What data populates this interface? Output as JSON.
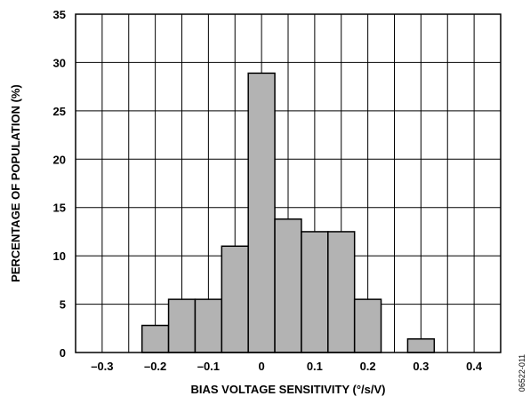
{
  "figure_id": "06522-011",
  "chart_data": {
    "type": "bar",
    "title": "",
    "xlabel": "BIAS VOLTAGE SENSITIVITY (°/s/V)",
    "ylabel": "PERCENTAGE OF POPULATION (%)",
    "xlim": [
      -0.35,
      0.45
    ],
    "ylim": [
      0,
      35
    ],
    "grid": true,
    "bar_color": "#b3b3b3",
    "x_ticks": [
      {
        "value": -0.3,
        "label": "–0.3"
      },
      {
        "value": -0.2,
        "label": "–0.2"
      },
      {
        "value": -0.1,
        "label": "–0.1"
      },
      {
        "value": 0,
        "label": "0"
      },
      {
        "value": 0.1,
        "label": "0.1"
      },
      {
        "value": 0.2,
        "label": "0.2"
      },
      {
        "value": 0.3,
        "label": "0.3"
      },
      {
        "value": 0.4,
        "label": "0.4"
      }
    ],
    "y_ticks": [
      {
        "value": 0,
        "label": "0"
      },
      {
        "value": 5,
        "label": "5"
      },
      {
        "value": 10,
        "label": "10"
      },
      {
        "value": 15,
        "label": "15"
      },
      {
        "value": 20,
        "label": "20"
      },
      {
        "value": 25,
        "label": "25"
      },
      {
        "value": 30,
        "label": "30"
      },
      {
        "value": 35,
        "label": "35"
      }
    ],
    "bins": [
      {
        "x_start": -0.225,
        "x_end": -0.175,
        "value": 2.8
      },
      {
        "x_start": -0.175,
        "x_end": -0.125,
        "value": 5.5
      },
      {
        "x_start": -0.125,
        "x_end": -0.075,
        "value": 5.5
      },
      {
        "x_start": -0.075,
        "x_end": -0.025,
        "value": 11.0
      },
      {
        "x_start": -0.025,
        "x_end": 0.025,
        "value": 28.9
      },
      {
        "x_start": 0.025,
        "x_end": 0.075,
        "value": 13.8
      },
      {
        "x_start": 0.075,
        "x_end": 0.125,
        "value": 12.5
      },
      {
        "x_start": 0.125,
        "x_end": 0.175,
        "value": 12.5
      },
      {
        "x_start": 0.175,
        "x_end": 0.225,
        "value": 5.5
      },
      {
        "x_start": 0.275,
        "x_end": 0.325,
        "value": 1.4
      }
    ]
  }
}
